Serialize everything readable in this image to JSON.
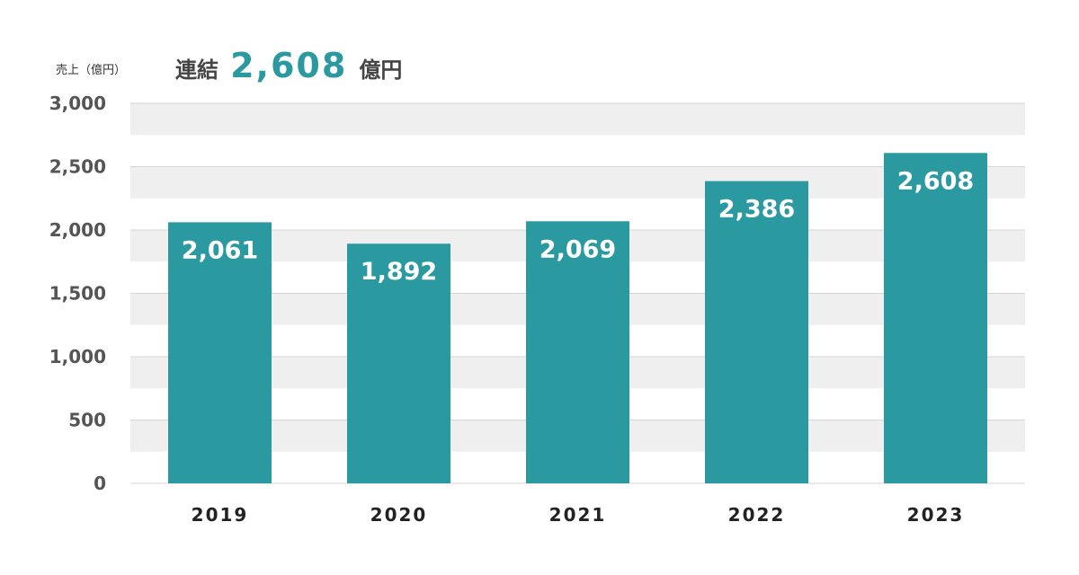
{
  "chart_data": {
    "type": "bar",
    "unit_label": "売上（億円）",
    "title_prefix": "連結",
    "title_value": "2,608",
    "title_suffix": "億円",
    "categories": [
      "2019",
      "2020",
      "2021",
      "2022",
      "2023"
    ],
    "values": [
      2061,
      1892,
      2069,
      2386,
      2608
    ],
    "value_labels": [
      "2,061",
      "1,892",
      "2,069",
      "2,386",
      "2,608"
    ],
    "yticks": [
      0,
      500,
      1000,
      1500,
      2000,
      2500,
      3000
    ],
    "ytick_labels": [
      "0",
      "500",
      "1,000",
      "1,500",
      "2,000",
      "2,500",
      "3,000"
    ],
    "ylim": [
      0,
      3000
    ],
    "grid": true,
    "colors": {
      "bar": "#2a9aa0",
      "band": "#efefef",
      "gridline": "#d6d6d6"
    }
  }
}
